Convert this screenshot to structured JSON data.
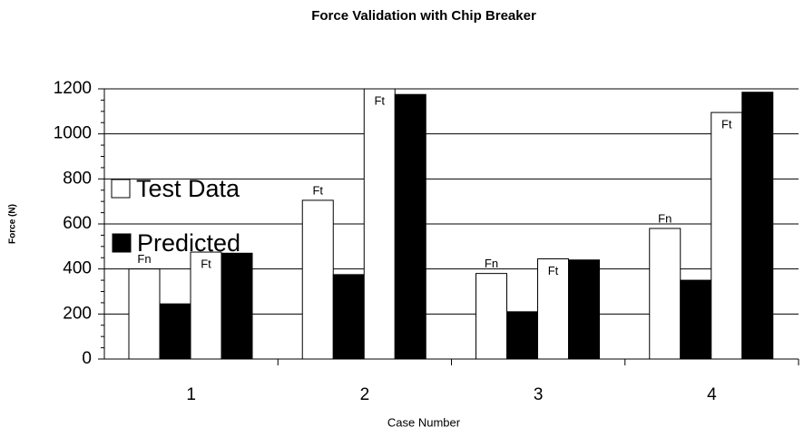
{
  "chart_data": {
    "type": "bar",
    "title": "Force Validation with Chip Breaker",
    "xlabel": "Case Number",
    "ylabel": "Force (N)",
    "categories": [
      "1",
      "2",
      "3",
      "4"
    ],
    "series": [
      {
        "name": "Test Data",
        "color": "#ffffff",
        "values": [
          400,
          705,
          380,
          580
        ],
        "labels": [
          "Fn",
          "Ft",
          "Fn",
          "Fn"
        ]
      },
      {
        "name": "Predicted",
        "color": "#000000",
        "values": [
          245,
          375,
          210,
          350
        ]
      },
      {
        "color": "#ffffff",
        "values": [
          475,
          1200,
          445,
          1095
        ],
        "labels": [
          "Ft",
          "Ft",
          "Ft",
          "Ft"
        ]
      },
      {
        "color": "#000000",
        "values": [
          470,
          1175,
          440,
          1185
        ]
      }
    ],
    "ylim": [
      0,
      1200
    ],
    "yticks": [
      0,
      200,
      400,
      600,
      800,
      1000,
      1200
    ],
    "grid": true
  }
}
